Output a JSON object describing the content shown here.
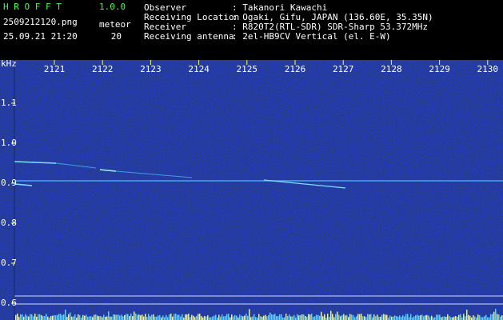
{
  "header": {
    "app_name": "H R O F F T",
    "version": "1.0.0",
    "file": "2509212120.png",
    "datetime": "25.09.21 21:20",
    "count_label": "meteor",
    "count": 20,
    "info": [
      {
        "label": "Observer",
        "value": ": Takanori Kawachi"
      },
      {
        "label": "Receiving Location",
        "value": ": Ogaki, Gifu, JAPAN (136.60E, 35.35N)"
      },
      {
        "label": "Receiver",
        "value": ": R820T2(RTL-SDR) SDR-Sharp 53.372MHz"
      },
      {
        "label": "Receiving antenna",
        "value": ": 2el-HB9CV Vertical (el. E-W)"
      }
    ]
  },
  "axis": {
    "unit": "kHz",
    "x_ticks": [
      "2121",
      "2122",
      "2123",
      "2124",
      "2125",
      "2126",
      "2127",
      "2128",
      "2129",
      "2130"
    ],
    "y_ticks": [
      "1.1",
      "1.0",
      "0.9",
      "0.8",
      "0.7",
      "0.6"
    ]
  }
}
